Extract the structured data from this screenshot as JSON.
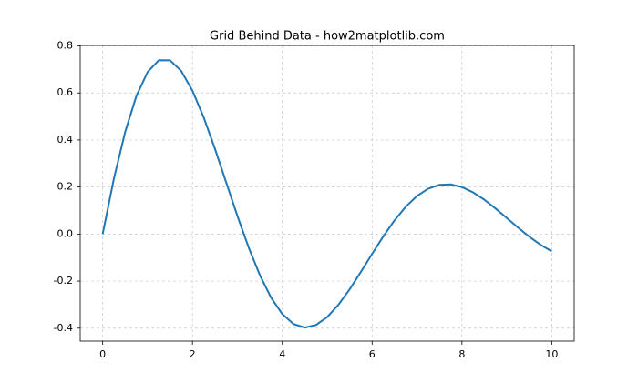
{
  "chart_data": {
    "type": "line",
    "title": "Grid Behind Data - how2matplotlib.com",
    "x": [
      0,
      0.25,
      0.5,
      0.75,
      1,
      1.25,
      1.5,
      1.75,
      2,
      2.25,
      2.5,
      2.75,
      3,
      3.25,
      3.5,
      3.75,
      4,
      4.25,
      4.5,
      4.75,
      5,
      5.25,
      5.5,
      5.75,
      6,
      6.25,
      6.5,
      6.75,
      7,
      7.25,
      7.5,
      7.75,
      8,
      8.25,
      8.5,
      8.75,
      9,
      9.25,
      9.5,
      9.75,
      10
    ],
    "series": [
      {
        "color": "#1f77b4",
        "values": [
          0,
          0.2353,
          0.4338,
          0.5867,
          0.6889,
          0.7391,
          0.7389,
          0.6934,
          0.6095,
          0.4961,
          0.363,
          0.2202,
          0.0774,
          -0.0565,
          -0.1742,
          -0.27,
          -0.34,
          -0.3825,
          -0.3975,
          -0.3864,
          -0.3528,
          -0.3005,
          -0.2349,
          -0.1609,
          -0.0842,
          -0.0095,
          0.0586,
          0.1166,
          0.162,
          0.1931,
          0.2093,
          0.2111,
          0.1997,
          0.1772,
          0.1459,
          0.1085,
          0.0681,
          0.0274,
          -0.0112,
          -0.0455,
          -0.0736
        ]
      }
    ],
    "xlim": [
      -0.5,
      10.5
    ],
    "ylim": [
      -0.455,
      0.802
    ],
    "xticks": [
      0,
      2,
      4,
      6,
      8,
      10
    ],
    "yticks": [
      -0.4,
      -0.2,
      {
        "value": 0,
        "label": "0.0"
      },
      0.2,
      0.4,
      0.6,
      0.8
    ],
    "grid": true
  }
}
